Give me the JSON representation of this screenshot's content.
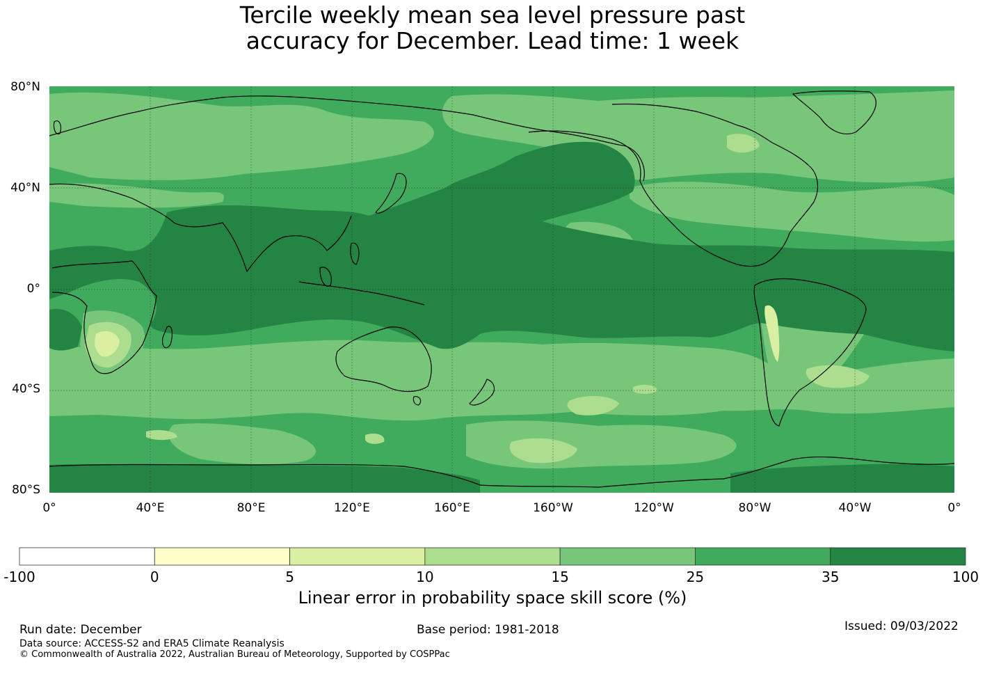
{
  "title": {
    "line1": "Tercile weekly mean sea level pressure past",
    "line2": "accuracy for December. Lead time: 1 week"
  },
  "map": {
    "lat_labels": [
      "80°N",
      "40°N",
      "0°",
      "40°S",
      "80°S"
    ],
    "lon_labels": [
      "0°",
      "40°E",
      "80°E",
      "120°E",
      "160°E",
      "160°W",
      "120°W",
      "80°W",
      "40°W",
      "0°"
    ]
  },
  "colorbar": {
    "ticks": [
      "-100",
      "0",
      "5",
      "10",
      "15",
      "25",
      "35",
      "100"
    ],
    "colors": [
      "#ffffff",
      "#ffffcc",
      "#d9f0a3",
      "#addd8e",
      "#78c679",
      "#41ab5d",
      "#238443"
    ],
    "label": "Linear error in probability space skill score (%)"
  },
  "footer": {
    "run_date": "Run date: December",
    "base_period": "Base period: 1981-2018",
    "issued": "Issued: 09/03/2022",
    "data_source": "Data source: ACCESS-S2 and ERA5 Climate Reanalysis",
    "copyright": "© Commonwealth of Australia 2022, Australian Bureau of Meteorology, Supported by COSPPac"
  }
}
